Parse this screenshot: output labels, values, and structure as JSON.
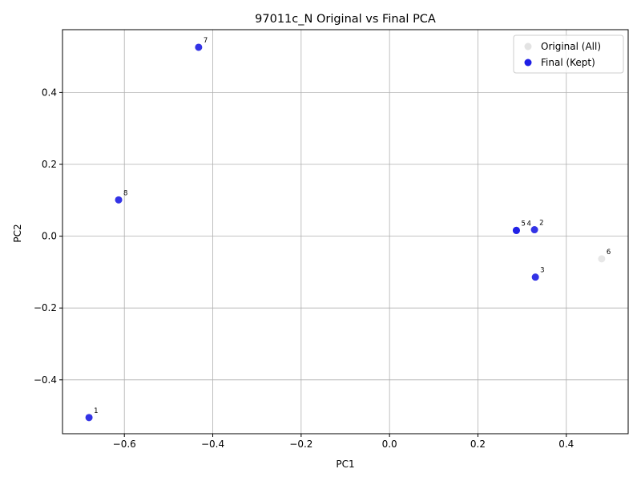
{
  "chart_data": {
    "type": "scatter",
    "title": "97011c_N Original vs Final PCA",
    "xlabel": "PC1",
    "ylabel": "PC2",
    "xlim": [
      -0.74,
      0.54
    ],
    "ylim": [
      -0.55,
      0.575
    ],
    "xticks": [
      -0.6,
      -0.4,
      -0.2,
      0.0,
      0.2,
      0.4
    ],
    "xtick_labels": [
      "−0.6",
      "−0.4",
      "−0.2",
      "0.0",
      "0.2",
      "0.4"
    ],
    "yticks": [
      -0.4,
      -0.2,
      0.0,
      0.2,
      0.4
    ],
    "ytick_labels": [
      "−0.4",
      "−0.2",
      "0.0",
      "0.2",
      "0.4"
    ],
    "grid": true,
    "legend_position": "top-right",
    "series": [
      {
        "name": "Original (All)",
        "color": "#e3e3e3",
        "points": [
          {
            "label": "1",
            "x": -0.68,
            "y": -0.505
          },
          {
            "label": "2",
            "x": 0.328,
            "y": 0.018
          },
          {
            "label": "3",
            "x": 0.33,
            "y": -0.114
          },
          {
            "label": "4",
            "x": 0.287,
            "y": 0.016
          },
          {
            "label": "5",
            "x": 0.287,
            "y": 0.016
          },
          {
            "label": "6",
            "x": 0.48,
            "y": -0.063
          },
          {
            "label": "7",
            "x": -0.432,
            "y": 0.526
          },
          {
            "label": "8",
            "x": -0.613,
            "y": 0.101
          }
        ]
      },
      {
        "name": "Final (Kept)",
        "color": "#1f1fe6",
        "points": [
          {
            "label": "1",
            "x": -0.68,
            "y": -0.505
          },
          {
            "label": "2",
            "x": 0.328,
            "y": 0.018
          },
          {
            "label": "3",
            "x": 0.33,
            "y": -0.114
          },
          {
            "label": "4",
            "x": 0.287,
            "y": 0.016
          },
          {
            "label": "5",
            "x": 0.287,
            "y": 0.016
          },
          {
            "label": "7",
            "x": -0.432,
            "y": 0.526
          },
          {
            "label": "8",
            "x": -0.613,
            "y": 0.101
          }
        ]
      }
    ]
  }
}
